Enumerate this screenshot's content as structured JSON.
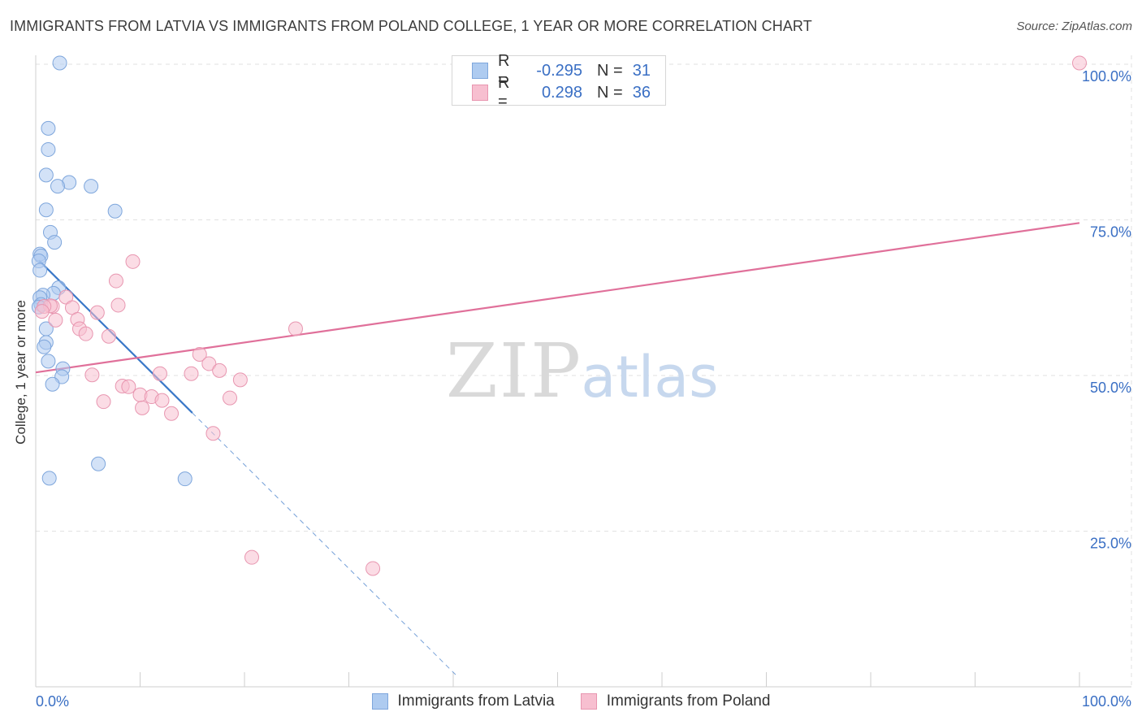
{
  "header": {
    "title": "IMMIGRANTS FROM LATVIA VS IMMIGRANTS FROM POLAND COLLEGE, 1 YEAR OR MORE CORRELATION CHART",
    "source": "Source: ZipAtlas.com"
  },
  "watermark": {
    "zip": "ZIP",
    "atlas": "atlas"
  },
  "legend": {
    "latvia": {
      "r_label": "R =",
      "r_value": "-0.295",
      "n_label": "N =",
      "n_value": "31"
    },
    "poland": {
      "r_label": "R =",
      "r_value": "0.298",
      "n_label": "N =",
      "n_value": "36"
    }
  },
  "bottom_legend": {
    "latvia": "Immigrants from Latvia",
    "poland": "Immigrants from Poland"
  },
  "colors": {
    "latvia_fill": "#aecbf0",
    "latvia_stroke": "#7ea6dc",
    "latvia_line": "#3a78c8",
    "poland_fill": "#f7bfd0",
    "poland_stroke": "#e896b0",
    "poland_line": "#e0709a",
    "tick_label": "#3a6fc4",
    "grid": "#e2e2e2"
  },
  "chart_data": {
    "type": "scatter",
    "title": "IMMIGRANTS FROM LATVIA VS IMMIGRANTS FROM POLAND COLLEGE, 1 YEAR OR MORE CORRELATION CHART",
    "xlabel": "",
    "ylabel": "College, 1 year or more",
    "xlim": [
      0,
      100
    ],
    "ylim": [
      0,
      102
    ],
    "x_tick_labels": [
      "0.0%",
      "100.0%"
    ],
    "y_ticks": [
      25,
      50,
      75,
      100
    ],
    "y_tick_labels": [
      "25.0%",
      "50.0%",
      "75.0%",
      "100.0%"
    ],
    "grid": true,
    "legend_position": "top-center",
    "series": [
      {
        "name": "Immigrants from Latvia",
        "points": [
          [
            2.3,
            100.2
          ],
          [
            1.2,
            89.7
          ],
          [
            1.2,
            86.3
          ],
          [
            1.0,
            82.2
          ],
          [
            3.2,
            81.0
          ],
          [
            2.1,
            80.4
          ],
          [
            5.3,
            80.4
          ],
          [
            1.0,
            76.6
          ],
          [
            7.6,
            76.4
          ],
          [
            1.4,
            73.0
          ],
          [
            1.8,
            71.4
          ],
          [
            0.4,
            69.5
          ],
          [
            0.5,
            69.2
          ],
          [
            0.3,
            68.4
          ],
          [
            0.4,
            66.9
          ],
          [
            2.2,
            64.1
          ],
          [
            1.7,
            63.2
          ],
          [
            0.7,
            62.9
          ],
          [
            0.4,
            62.5
          ],
          [
            0.5,
            61.4
          ],
          [
            1.0,
            57.5
          ],
          [
            1.0,
            55.3
          ],
          [
            0.8,
            54.6
          ],
          [
            1.2,
            52.3
          ],
          [
            2.6,
            51.1
          ],
          [
            2.5,
            49.8
          ],
          [
            1.6,
            48.6
          ],
          [
            6.0,
            35.8
          ],
          [
            1.3,
            33.5
          ],
          [
            14.3,
            33.4
          ],
          [
            0.3,
            61.0
          ]
        ]
      },
      {
        "name": "Immigrants from Poland",
        "points": [
          [
            100.0,
            100.2
          ],
          [
            9.3,
            68.3
          ],
          [
            7.7,
            65.2
          ],
          [
            7.9,
            61.3
          ],
          [
            2.9,
            62.6
          ],
          [
            1.6,
            61.1
          ],
          [
            1.4,
            61.2
          ],
          [
            0.8,
            61.1
          ],
          [
            0.6,
            60.3
          ],
          [
            3.5,
            60.9
          ],
          [
            5.9,
            60.1
          ],
          [
            4.0,
            59.0
          ],
          [
            1.9,
            58.9
          ],
          [
            4.2,
            57.5
          ],
          [
            4.8,
            56.7
          ],
          [
            7.0,
            56.3
          ],
          [
            24.9,
            57.5
          ],
          [
            15.7,
            53.4
          ],
          [
            16.6,
            51.9
          ],
          [
            17.6,
            50.8
          ],
          [
            11.9,
            50.3
          ],
          [
            14.9,
            50.3
          ],
          [
            5.4,
            50.1
          ],
          [
            19.6,
            49.3
          ],
          [
            8.3,
            48.3
          ],
          [
            8.9,
            48.2
          ],
          [
            10.0,
            46.9
          ],
          [
            11.1,
            46.6
          ],
          [
            12.1,
            46.0
          ],
          [
            18.6,
            46.4
          ],
          [
            6.5,
            45.8
          ],
          [
            10.2,
            44.8
          ],
          [
            13.0,
            43.9
          ],
          [
            17.0,
            40.7
          ],
          [
            20.7,
            20.8
          ],
          [
            32.3,
            19.0
          ]
        ]
      }
    ],
    "trend_lines": [
      {
        "series": "Immigrants from Latvia",
        "solid": [
          [
            0.3,
            68.5
          ],
          [
            15.0,
            44.0
          ]
        ],
        "dashed": [
          [
            15.0,
            44.0
          ],
          [
            40.5,
            1.5
          ]
        ]
      },
      {
        "series": "Immigrants from Poland",
        "solid": [
          [
            0.0,
            50.5
          ],
          [
            100.0,
            74.5
          ]
        ]
      }
    ]
  }
}
